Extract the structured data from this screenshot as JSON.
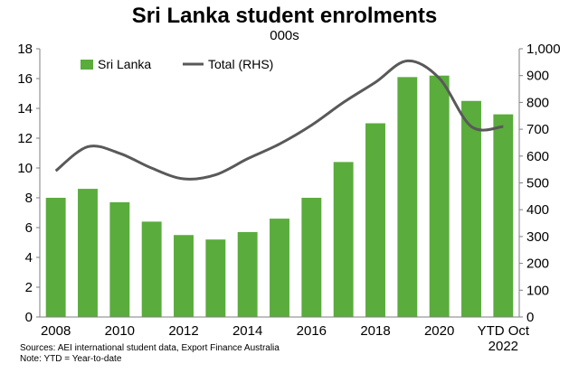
{
  "chart_data": {
    "type": "bar",
    "title": "Sri Lanka student enrolments",
    "subtitle": "000s",
    "categories": [
      "2008",
      "2009",
      "2010",
      "2011",
      "2012",
      "2013",
      "2014",
      "2015",
      "2016",
      "2017",
      "2018",
      "2019",
      "2020",
      "2021",
      "YTD Oct 2022"
    ],
    "x_tick_labels": [
      "2008",
      "2010",
      "2012",
      "2014",
      "2016",
      "2018",
      "2020",
      "YTD Oct 2022"
    ],
    "series": [
      {
        "name": "Sri Lanka",
        "type": "bar",
        "axis": "left",
        "color": "#5aac3c",
        "values": [
          8.0,
          8.6,
          7.7,
          6.4,
          5.5,
          5.2,
          5.7,
          6.6,
          8.0,
          10.4,
          13.0,
          16.1,
          16.2,
          14.5,
          13.6
        ]
      },
      {
        "name": "Total (RHS)",
        "type": "line",
        "axis": "right",
        "color": "#595959",
        "values": [
          545,
          635,
          610,
          555,
          515,
          530,
          590,
          645,
          715,
          800,
          875,
          955,
          890,
          710,
          710
        ]
      }
    ],
    "y_left": {
      "range": [
        0,
        18
      ],
      "ticks": [
        "0",
        "2",
        "4",
        "6",
        "8",
        "10",
        "12",
        "14",
        "16",
        "18"
      ]
    },
    "y_right": {
      "range": [
        0,
        1000
      ],
      "ticks": [
        "0",
        "100",
        "200",
        "300",
        "400",
        "500",
        "600",
        "700",
        "800",
        "900",
        "1,000"
      ]
    },
    "grid": false,
    "legend": "top-left"
  },
  "footnotes": {
    "source": "Sources: AEI international student data, Export Finance Australia",
    "note": "Note: YTD = Year-to-date"
  }
}
